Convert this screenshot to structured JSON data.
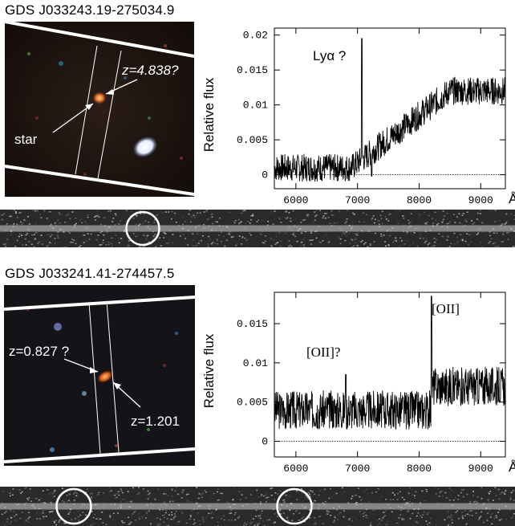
{
  "panels": [
    {
      "title": "GDS J033243.19-275034.9",
      "image_labels": {
        "star": "star",
        "z": "z=4.838?"
      },
      "chart_data": {
        "type": "line",
        "ylabel": "Relative flux",
        "xlabel": "Å",
        "xlim": [
          5650,
          9400
        ],
        "ylim": [
          -0.002,
          0.021
        ],
        "xticks": [
          "6000",
          "7000",
          "8000",
          "9000"
        ],
        "yticks": [
          "0",
          "0.005",
          "0.01",
          "0.015",
          "0.02"
        ],
        "annotations": [
          "Lyα ?"
        ],
        "line_at": 7070
      }
    },
    {
      "title": "GDS J033241.41-274457.5",
      "image_labels": {
        "z1": "z=0.827 ?",
        "z2": "z=1.201"
      },
      "chart_data": {
        "type": "line",
        "ylabel": "Relative flux",
        "xlabel": "Å",
        "xlim": [
          5650,
          9400
        ],
        "ylim": [
          -0.002,
          0.019
        ],
        "xticks": [
          "6000",
          "7000",
          "8000",
          "9000"
        ],
        "yticks": [
          "0",
          "0.005",
          "0.01",
          "0.015"
        ],
        "annotations": [
          "[OII]?",
          "[OII]"
        ],
        "lines_at": [
          6810,
          8200
        ]
      }
    }
  ]
}
